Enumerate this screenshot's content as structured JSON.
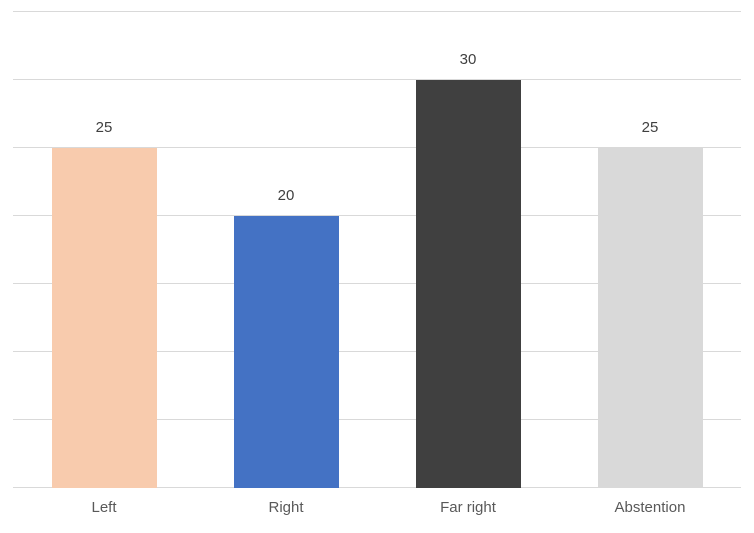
{
  "chart_data": {
    "type": "bar",
    "title": "",
    "xlabel": "",
    "ylabel": "",
    "categories": [
      "Left",
      "Right",
      "Far right",
      "Abstention"
    ],
    "values": [
      25,
      20,
      30,
      25
    ],
    "data_labels": [
      "25",
      "20",
      "30",
      "25"
    ],
    "bar_colors": [
      "#F8CBAD",
      "#4472C4",
      "#404040",
      "#D9D9D9"
    ],
    "ylim": [
      0,
      35
    ],
    "gridline_step": 5,
    "grid": true,
    "y_tick_labels_visible": false,
    "legend_position": "none",
    "gridline_color": "#D9D9D9",
    "axis_line_color": "#D9D9D9",
    "value_label_color": "#404040",
    "category_label_color": "#595959",
    "background_color": "#FFFFFF"
  }
}
